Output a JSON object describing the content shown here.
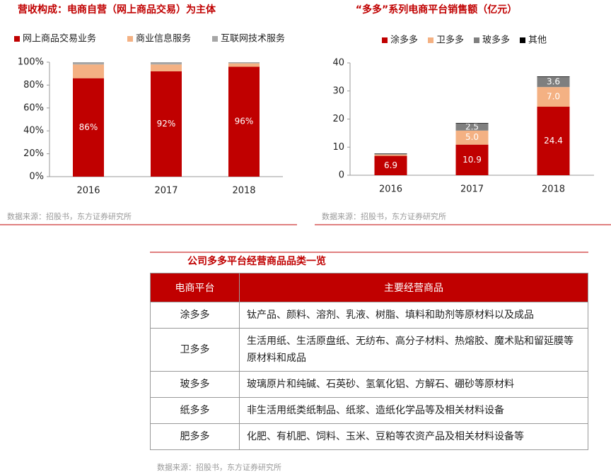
{
  "chart_data": [
    {
      "type": "bar",
      "stacked": true,
      "title": "营收构成：电商自营（网上商品交易）为主体",
      "categories": [
        "2016",
        "2017",
        "2018"
      ],
      "series": [
        {
          "name": "网上商品交易业务",
          "color": "#c00000",
          "values": [
            86,
            92,
            96
          ],
          "value_labels": [
            "86%",
            "92%",
            "96%"
          ]
        },
        {
          "name": "商业信息服务",
          "color": "#f4b183",
          "values": [
            12,
            6,
            3
          ]
        },
        {
          "name": "互联网技术服务",
          "color": "#a6a6a6",
          "values": [
            2,
            2,
            1
          ]
        }
      ],
      "ylim": [
        0,
        100
      ],
      "yticks": [
        {
          "value": 0,
          "label": "0%"
        },
        {
          "value": 20,
          "label": "20%"
        },
        {
          "value": 40,
          "label": "40%"
        },
        {
          "value": 60,
          "label": "60%"
        },
        {
          "value": 80,
          "label": "80%"
        },
        {
          "value": 100,
          "label": "100%"
        }
      ],
      "source": "数据来源：招股书，东方证券研究所"
    },
    {
      "type": "bar",
      "stacked": true,
      "title": "“多多”系列电商平台销售额（亿元）",
      "categories": [
        "2016",
        "2017",
        "2018"
      ],
      "series": [
        {
          "name": "涂多多",
          "color": "#c00000",
          "values": [
            6.9,
            10.9,
            24.4
          ],
          "value_labels": [
            "6.9",
            "10.9",
            "24.4"
          ]
        },
        {
          "name": "卫多多",
          "color": "#f4b183",
          "values": [
            0.5,
            5.0,
            7.0
          ],
          "value_labels": [
            null,
            "5.0",
            "7.0"
          ]
        },
        {
          "name": "玻多多",
          "color": "#7f7f7f",
          "values": [
            0.3,
            2.5,
            3.6
          ],
          "value_labels": [
            null,
            "2.5",
            "3.6"
          ]
        },
        {
          "name": "其他",
          "color": "#000000",
          "values": [
            0.1,
            0.2,
            0.2
          ]
        }
      ],
      "ylim": [
        0,
        40
      ],
      "yticks": [
        0,
        10,
        20,
        30,
        40
      ],
      "source": "数据来源：招股书，东方证券研究所"
    }
  ],
  "table": {
    "title": "公司多多平台经营商品品类一览",
    "header": [
      "电商平台",
      "主要经营商品"
    ],
    "rows": [
      [
        "涂多多",
        "钛产品、颜料、溶剂、乳液、树脂、填料和助剂等原材料以及成品"
      ],
      [
        "卫多多",
        "生活用纸、生活原盘纸、无纺布、高分子材料、热熔胶、魔术贴和留延膜等原材料和成品"
      ],
      [
        "玻多多",
        "玻璃原片和纯碱、石英砂、氢氧化铝、方解石、硼砂等原材料"
      ],
      [
        "纸多多",
        "非生活用纸类纸制品、纸浆、造纸化学品等及相关材料设备"
      ],
      [
        "肥多多",
        "化肥、有机肥、饲料、玉米、豆粕等农资产品及相关材料设备等"
      ]
    ],
    "source": "数据来源：招股书，东方证券研究所"
  }
}
